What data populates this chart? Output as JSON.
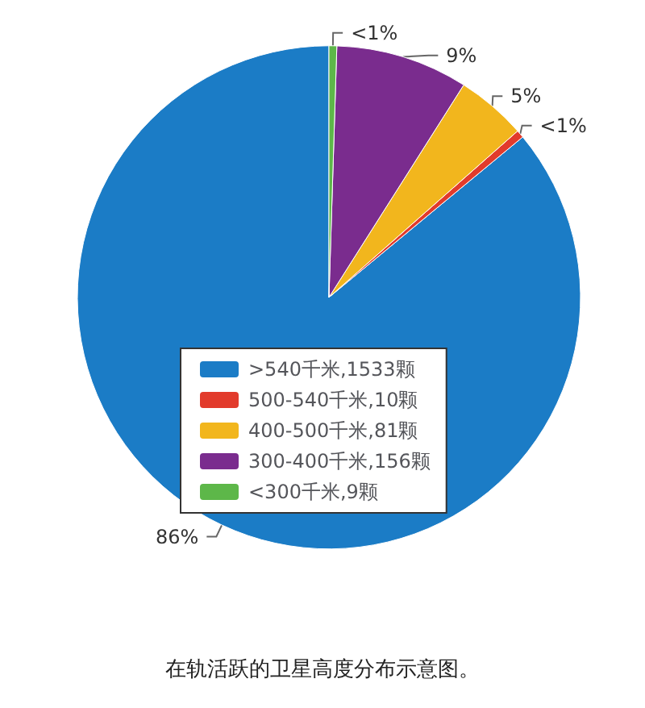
{
  "chart_data": {
    "type": "pie",
    "title": "在轨活跃的卫星高度分布示意图。",
    "categories": [
      ">540千米,1533颗",
      "500-540千米,10颗",
      "400-500千米,81颗",
      "300-400千米,156颗",
      "<300千米,9颗"
    ],
    "values": [
      86,
      0.5,
      4.5,
      8.5,
      0.5
    ],
    "colors": [
      "#1b7cc6",
      "#e23b2c",
      "#f2b61d",
      "#7a2c8e",
      "#5db749"
    ],
    "value_labels": [
      "86%",
      "<1%",
      "5%",
      "9%",
      "<1%"
    ],
    "legend": "bottom"
  }
}
